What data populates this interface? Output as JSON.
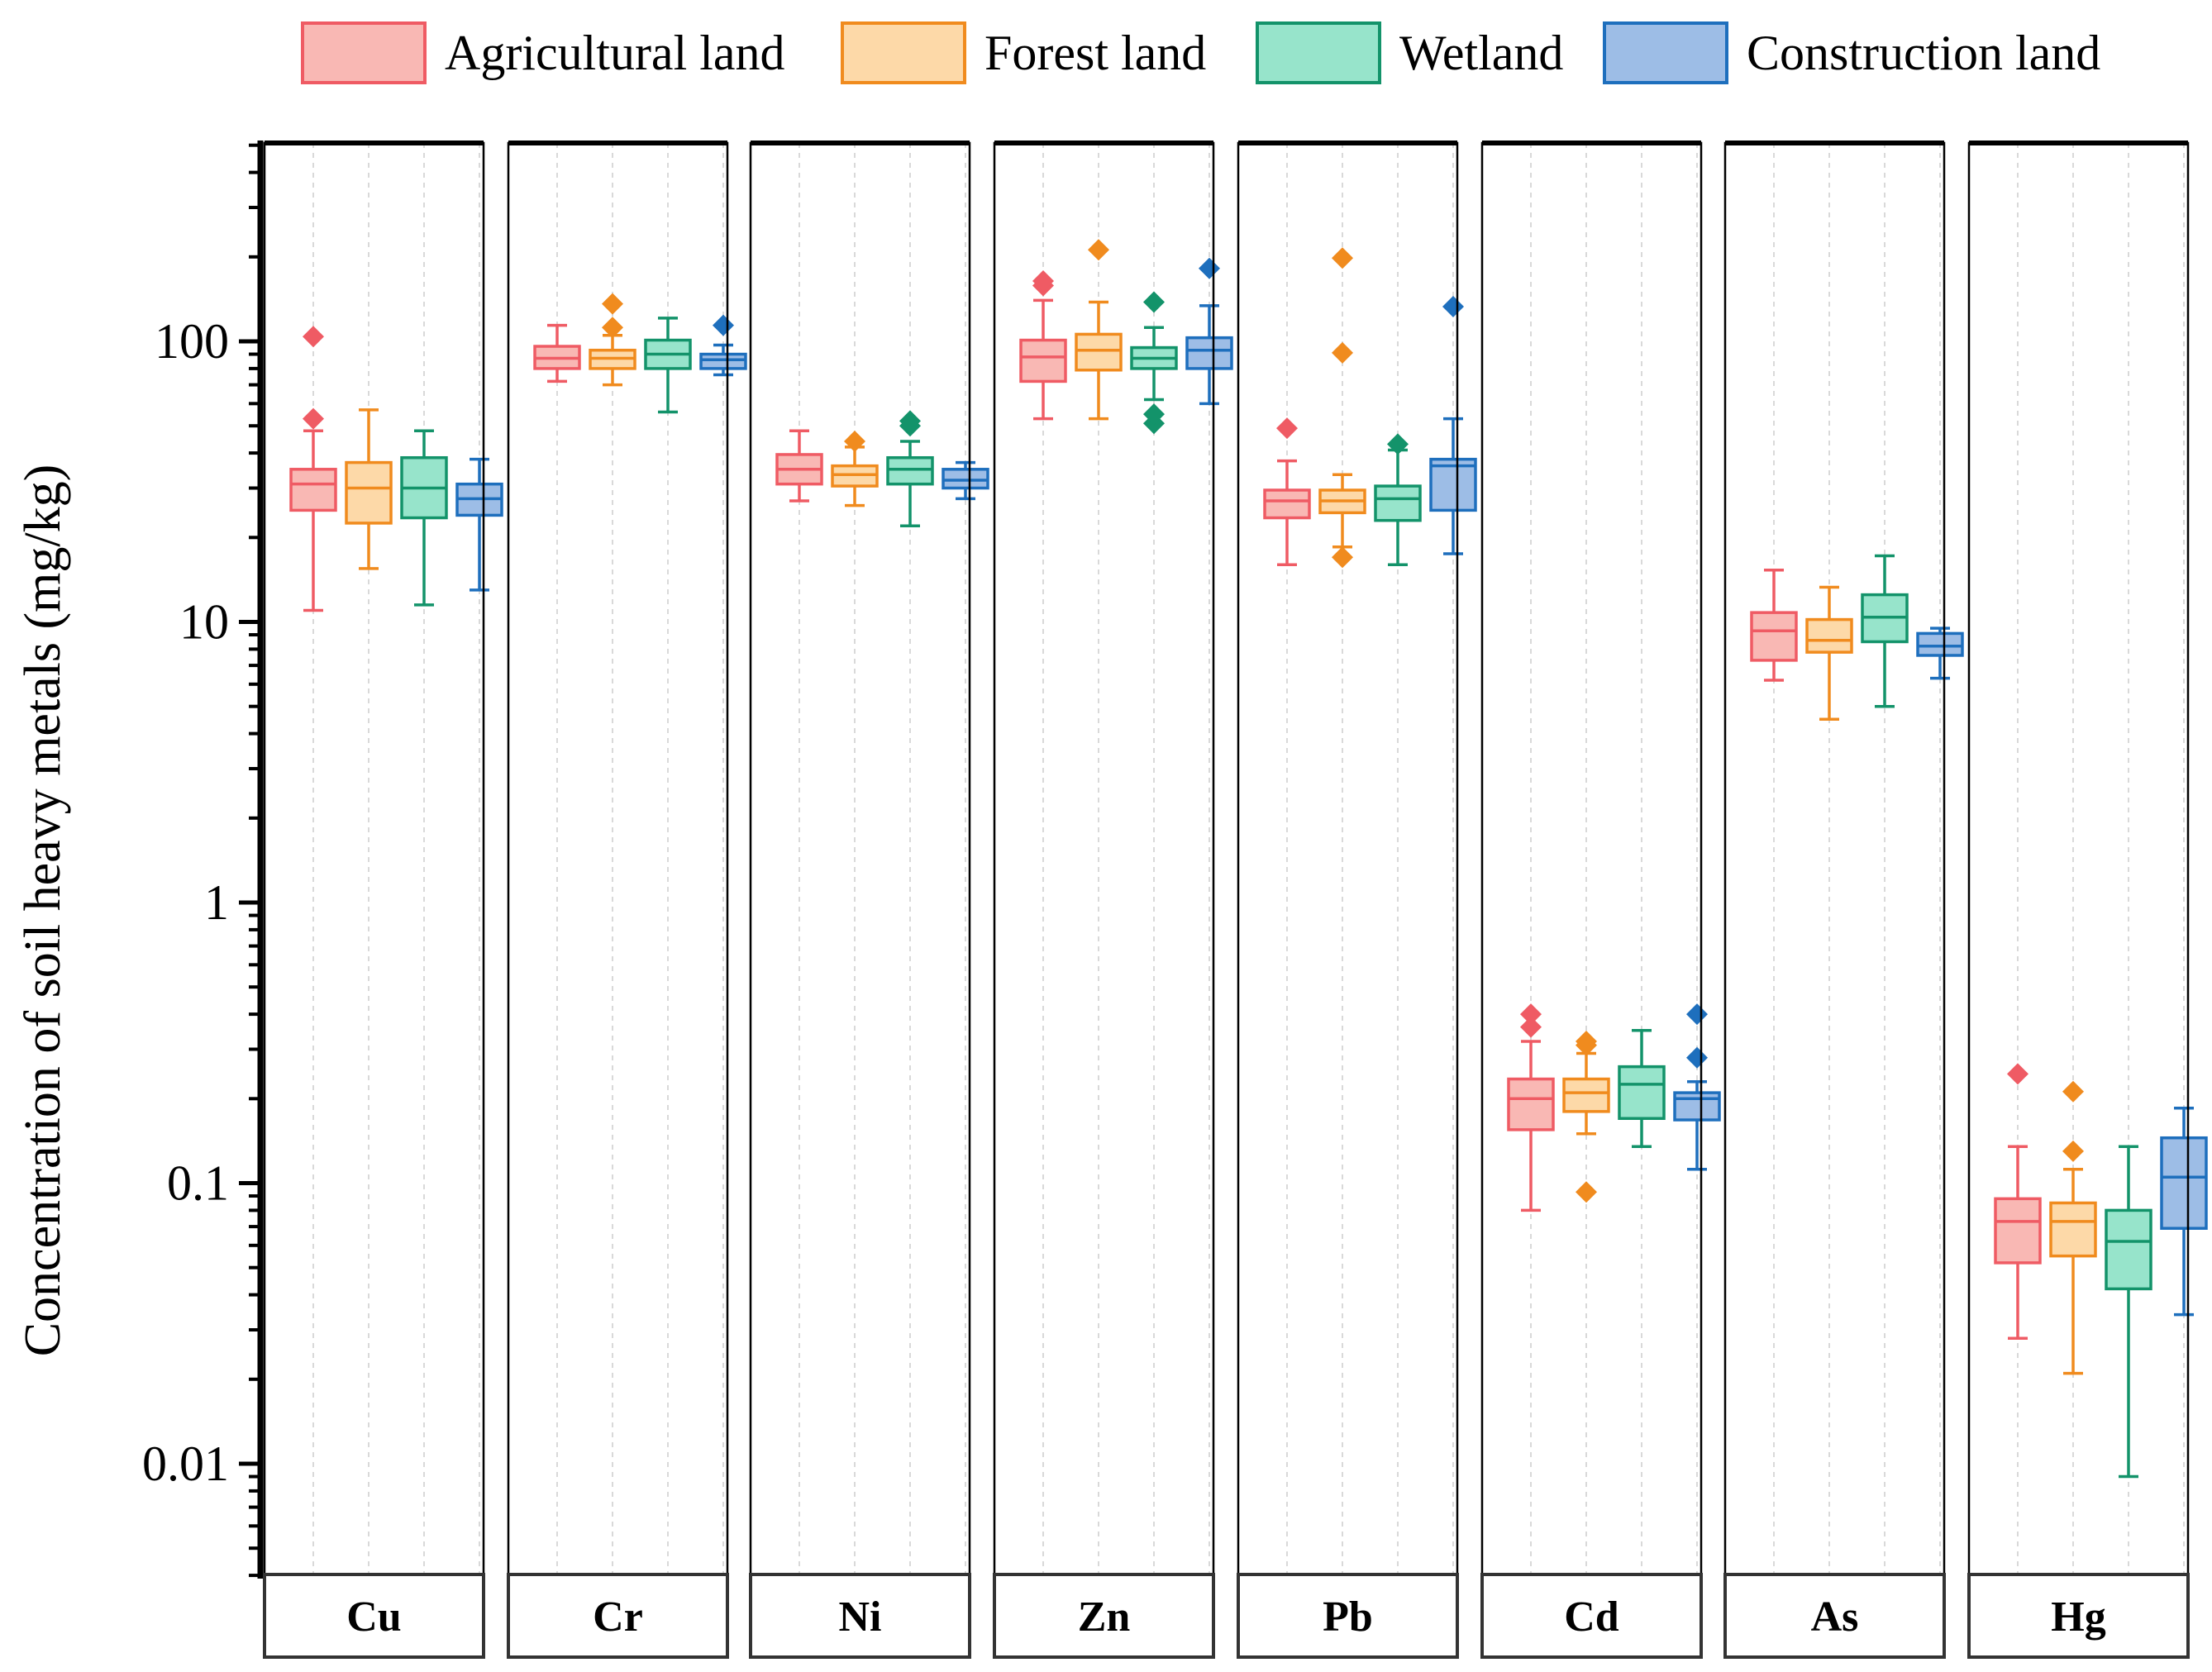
{
  "chart_data": {
    "type": "boxplot",
    "ylabel": "Concentration of soil heavy metals (mg/kg)",
    "yscale": "log10",
    "ylim": [
      0.004,
      550
    ],
    "yticks": [
      0.01,
      0.1,
      1,
      10,
      100
    ],
    "ytick_labels": [
      "0.01",
      "0.1",
      "1",
      "10",
      "100"
    ],
    "legend": {
      "position": "top",
      "entries": [
        {
          "name": "Agricultural land",
          "fill": "#f9b8b4",
          "stroke": "#ef5b64"
        },
        {
          "name": "Forest land",
          "fill": "#fdd9a8",
          "stroke": "#f08b1e"
        },
        {
          "name": "Wetland",
          "fill": "#97e4cb",
          "stroke": "#13936a"
        },
        {
          "name": "Construction land",
          "fill": "#9dbde6",
          "stroke": "#1e6fbd"
        }
      ]
    },
    "panels": [
      {
        "metal": "Cu",
        "groups": [
          {
            "land": "Agricultural land",
            "whisker_low": 11,
            "q1": 25,
            "median": 31,
            "q3": 35,
            "whisker_high": 48,
            "outliers": [
              53,
              104
            ]
          },
          {
            "land": "Forest land",
            "whisker_low": 15.5,
            "q1": 22.5,
            "median": 30,
            "q3": 37,
            "whisker_high": 57,
            "outliers": []
          },
          {
            "land": "Wetland",
            "whisker_low": 11.5,
            "q1": 23.5,
            "median": 30,
            "q3": 38.5,
            "whisker_high": 48,
            "outliers": []
          },
          {
            "land": "Construction land",
            "whisker_low": 13,
            "q1": 24,
            "median": 27.5,
            "q3": 31,
            "whisker_high": 38,
            "outliers": []
          }
        ]
      },
      {
        "metal": "Cr",
        "groups": [
          {
            "land": "Agricultural land",
            "whisker_low": 72,
            "q1": 80,
            "median": 87,
            "q3": 96,
            "whisker_high": 114,
            "outliers": []
          },
          {
            "land": "Forest land",
            "whisker_low": 70,
            "q1": 80,
            "median": 87,
            "q3": 93,
            "whisker_high": 105,
            "outliers": [
              112,
              136
            ]
          },
          {
            "land": "Wetland",
            "whisker_low": 56,
            "q1": 80,
            "median": 90,
            "q3": 101,
            "whisker_high": 121,
            "outliers": []
          },
          {
            "land": "Construction land",
            "whisker_low": 76,
            "q1": 80,
            "median": 86,
            "q3": 90,
            "whisker_high": 97,
            "outliers": [
              114
            ]
          }
        ]
      },
      {
        "metal": "Ni",
        "groups": [
          {
            "land": "Agricultural land",
            "whisker_low": 27,
            "q1": 31,
            "median": 35,
            "q3": 39.5,
            "whisker_high": 48,
            "outliers": []
          },
          {
            "land": "Forest land",
            "whisker_low": 26,
            "q1": 30.5,
            "median": 33.5,
            "q3": 36,
            "whisker_high": 42,
            "outliers": [
              44
            ]
          },
          {
            "land": "Wetland",
            "whisker_low": 22,
            "q1": 31,
            "median": 35,
            "q3": 38.5,
            "whisker_high": 44,
            "outliers": [
              50,
              52
            ]
          },
          {
            "land": "Construction land",
            "whisker_low": 27.5,
            "q1": 30,
            "median": 32,
            "q3": 35,
            "whisker_high": 37,
            "outliers": []
          }
        ]
      },
      {
        "metal": "Zn",
        "groups": [
          {
            "land": "Agricultural land",
            "whisker_low": 53,
            "q1": 72,
            "median": 88,
            "q3": 101,
            "whisker_high": 140,
            "outliers": [
              158,
              164
            ]
          },
          {
            "land": "Forest land",
            "whisker_low": 53,
            "q1": 79,
            "median": 93,
            "q3": 106,
            "whisker_high": 138,
            "outliers": [
              212
            ]
          },
          {
            "land": "Wetland",
            "whisker_low": 62,
            "q1": 80,
            "median": 87,
            "q3": 95,
            "whisker_high": 112,
            "outliers": [
              51,
              55,
              138
            ]
          },
          {
            "land": "Construction land",
            "whisker_low": 60,
            "q1": 80,
            "median": 93,
            "q3": 103,
            "whisker_high": 134,
            "outliers": [
              182
            ]
          }
        ]
      },
      {
        "metal": "Pb",
        "groups": [
          {
            "land": "Agricultural land",
            "whisker_low": 16,
            "q1": 23.5,
            "median": 27,
            "q3": 29.5,
            "whisker_high": 37.5,
            "outliers": [
              49
            ]
          },
          {
            "land": "Forest land",
            "whisker_low": 18.5,
            "q1": 24.5,
            "median": 27,
            "q3": 29.5,
            "whisker_high": 33.5,
            "outliers": [
              17,
              91,
              198
            ]
          },
          {
            "land": "Wetland",
            "whisker_low": 16,
            "q1": 23,
            "median": 27.5,
            "q3": 30.5,
            "whisker_high": 41,
            "outliers": [
              43
            ]
          },
          {
            "land": "Construction land",
            "whisker_low": 17.5,
            "q1": 25,
            "median": 36,
            "q3": 38,
            "whisker_high": 53,
            "outliers": [
              133
            ]
          }
        ]
      },
      {
        "metal": "Cd",
        "groups": [
          {
            "land": "Agricultural land",
            "whisker_low": 0.08,
            "q1": 0.155,
            "median": 0.2,
            "q3": 0.235,
            "whisker_high": 0.32,
            "outliers": [
              0.36,
              0.4
            ]
          },
          {
            "land": "Forest land",
            "whisker_low": 0.15,
            "q1": 0.18,
            "median": 0.21,
            "q3": 0.235,
            "whisker_high": 0.29,
            "outliers": [
              0.093,
              0.31,
              0.32
            ]
          },
          {
            "land": "Wetland",
            "whisker_low": 0.135,
            "q1": 0.17,
            "median": 0.225,
            "q3": 0.26,
            "whisker_high": 0.35,
            "outliers": []
          },
          {
            "land": "Construction land",
            "whisker_low": 0.112,
            "q1": 0.168,
            "median": 0.2,
            "q3": 0.21,
            "whisker_high": 0.23,
            "outliers": [
              0.28,
              0.4
            ]
          }
        ]
      },
      {
        "metal": "As",
        "groups": [
          {
            "land": "Agricultural land",
            "whisker_low": 6.2,
            "q1": 7.3,
            "median": 9.3,
            "q3": 10.8,
            "whisker_high": 15.3,
            "outliers": []
          },
          {
            "land": "Forest land",
            "whisker_low": 4.5,
            "q1": 7.8,
            "median": 8.6,
            "q3": 10.2,
            "whisker_high": 13.3,
            "outliers": []
          },
          {
            "land": "Wetland",
            "whisker_low": 5,
            "q1": 8.5,
            "median": 10.4,
            "q3": 12.5,
            "whisker_high": 17.2,
            "outliers": []
          },
          {
            "land": "Construction land",
            "whisker_low": 6.3,
            "q1": 7.6,
            "median": 8.2,
            "q3": 9.1,
            "whisker_high": 9.5,
            "outliers": []
          }
        ]
      },
      {
        "metal": "Hg",
        "groups": [
          {
            "land": "Agricultural land",
            "whisker_low": 0.028,
            "q1": 0.052,
            "median": 0.073,
            "q3": 0.088,
            "whisker_high": 0.135,
            "outliers": [
              0.245
            ]
          },
          {
            "land": "Forest land",
            "whisker_low": 0.021,
            "q1": 0.055,
            "median": 0.073,
            "q3": 0.085,
            "whisker_high": 0.112,
            "outliers": [
              0.13,
              0.212
            ]
          },
          {
            "land": "Wetland",
            "whisker_low": 0.009,
            "q1": 0.042,
            "median": 0.062,
            "q3": 0.08,
            "whisker_high": 0.135,
            "outliers": []
          },
          {
            "land": "Construction land",
            "whisker_low": 0.034,
            "q1": 0.069,
            "median": 0.105,
            "q3": 0.145,
            "whisker_high": 0.185,
            "outliers": []
          }
        ]
      }
    ]
  }
}
